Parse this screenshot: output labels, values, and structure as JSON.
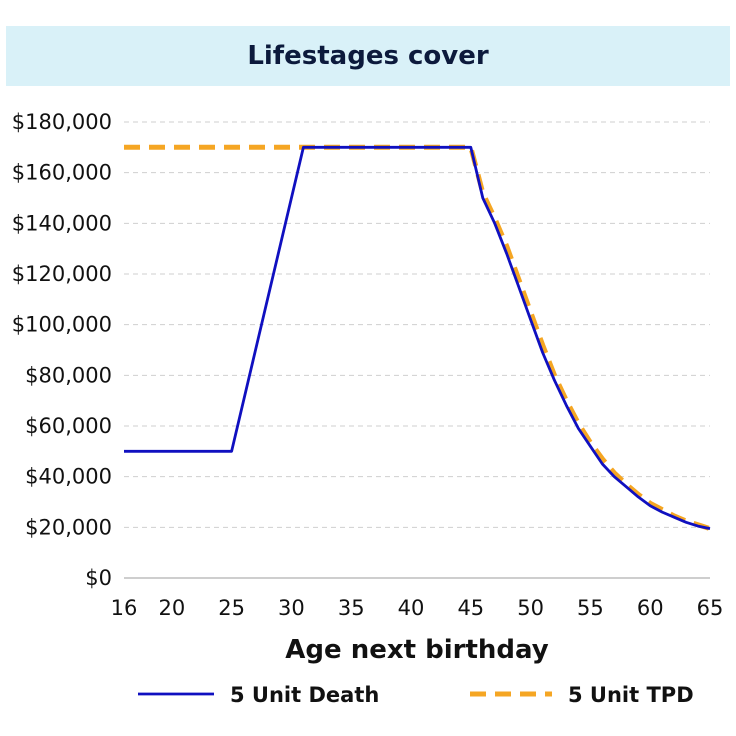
{
  "chart_data": {
    "type": "line",
    "title": "Lifestages cover",
    "xlabel": "Age next birthday",
    "ylabel": "",
    "xlim": [
      16,
      65
    ],
    "ylim": [
      0,
      180000
    ],
    "x_ticks": [
      "16",
      "20",
      "25",
      "30",
      "35",
      "40",
      "45",
      "50",
      "55",
      "60",
      "65"
    ],
    "y_ticks": [
      "$0",
      "$20,000",
      "$40,000",
      "$60,000",
      "$80,000",
      "$100,000",
      "$120,000",
      "$140,000",
      "$160,000",
      "$180,000"
    ],
    "grid": "horizontal-dashed",
    "legend_position": "bottom",
    "series": [
      {
        "name": "5 Unit Death",
        "color": "#1010c0",
        "style": "solid",
        "x": [
          16,
          24,
          25,
          31,
          45,
          46,
          47,
          48,
          49,
          50,
          51,
          52,
          53,
          54,
          55,
          56,
          57,
          58,
          59,
          60,
          61,
          62,
          63,
          64,
          65
        ],
        "y": [
          50000,
          50000,
          50000,
          170000,
          170000,
          150000,
          140000,
          128000,
          115000,
          102000,
          89000,
          78000,
          68000,
          59000,
          52000,
          45000,
          40000,
          36000,
          32000,
          28500,
          26000,
          24000,
          22000,
          20500,
          19500
        ]
      },
      {
        "name": "5 Unit TPD",
        "color": "#f5a623",
        "style": "dashed",
        "x": [
          16,
          45,
          46,
          47,
          48,
          49,
          50,
          51,
          52,
          53,
          54,
          55,
          56,
          57,
          58,
          59,
          60,
          61,
          62,
          63,
          64,
          65
        ],
        "y": [
          170000,
          170000,
          152000,
          142000,
          131000,
          118000,
          105000,
          92000,
          80000,
          70000,
          61000,
          53500,
          47000,
          41500,
          37000,
          33000,
          29500,
          27000,
          24500,
          22500,
          21000,
          19500
        ]
      }
    ]
  }
}
